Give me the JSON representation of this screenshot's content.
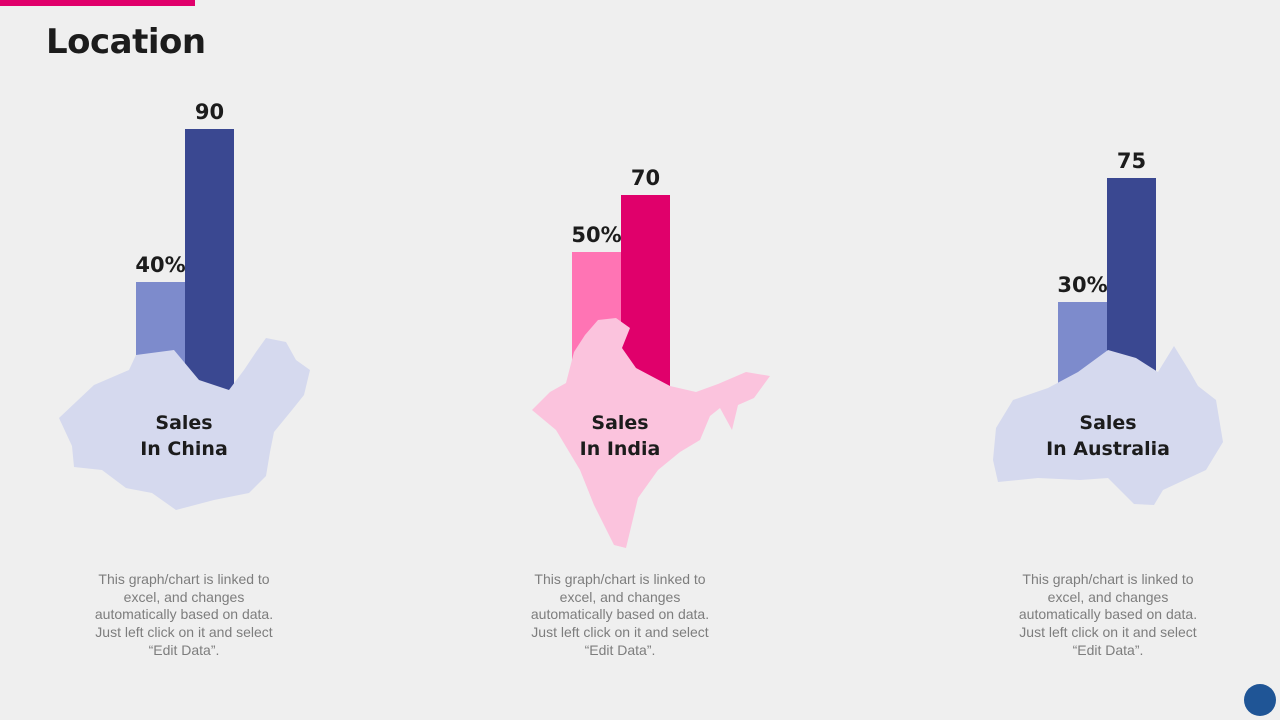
{
  "title": "Location",
  "colors": {
    "accent": "#e0006b",
    "navy": "#3a4891",
    "lavender": "#7d8bcc",
    "magenta": "#e0006b",
    "pink": "#ff74b4",
    "map_china": "#d5d9ee",
    "map_india": "#fbc3dd",
    "map_australia": "#d5d9ee",
    "corner_dot": "#1f5596"
  },
  "chart_data": [
    {
      "type": "bar",
      "region": "China",
      "label_lines": [
        "Sales",
        "In China"
      ],
      "values": [
        40,
        90
      ],
      "labels": [
        "40%",
        "90"
      ],
      "colors": [
        "#7d8bcc",
        "#3a4891"
      ],
      "map_icon": "china-map-icon",
      "note": "This graph/chart is linked to excel, and changes automatically based on data. Just left click on it and select “Edit Data”."
    },
    {
      "type": "bar",
      "region": "India",
      "label_lines": [
        "Sales",
        "In India"
      ],
      "values": [
        50,
        70
      ],
      "labels": [
        "50%",
        "70"
      ],
      "colors": [
        "#ff74b4",
        "#e0006b"
      ],
      "map_icon": "india-map-icon",
      "note": "This graph/chart is linked to excel, and changes automatically based on data. Just left click on it and select “Edit Data”."
    },
    {
      "type": "bar",
      "region": "Australia",
      "label_lines": [
        "Sales",
        "In Australia"
      ],
      "values": [
        30,
        75
      ],
      "labels": [
        "30%",
        "75"
      ],
      "colors": [
        "#7d8bcc",
        "#3a4891"
      ],
      "map_icon": "australia-map-icon",
      "note": "This graph/chart is linked to excel, and changes automatically based on data. Just left click on it and select “Edit Data”."
    }
  ]
}
